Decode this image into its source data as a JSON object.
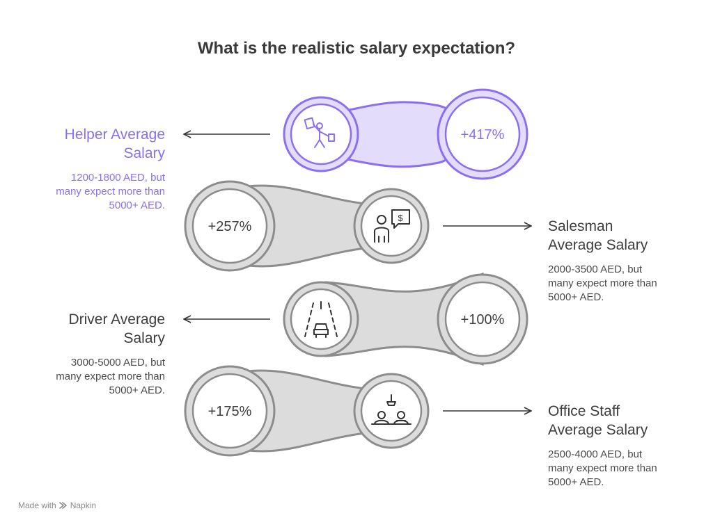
{
  "title": "What is the realistic salary expectation?",
  "rows": [
    {
      "id": "helper",
      "percent": "+417%",
      "icon": "delivery-person-icon",
      "heading": "Helper Average Salary",
      "heading_lines": [
        "Helper Average",
        "Salary"
      ],
      "description": "1200-1800 AED, but many expect more than 5000+ AED.",
      "desc_lines": [
        "1200-1800 AED, but",
        "many expect more than",
        "5000+ AED."
      ],
      "highlighted": true
    },
    {
      "id": "salesman",
      "percent": "+257%",
      "icon": "salesperson-icon",
      "heading": "Salesman Average Salary",
      "heading_lines": [
        "Salesman",
        "Average Salary"
      ],
      "description": "2000-3500 AED, but many expect more than 5000+ AED.",
      "desc_lines": [
        "2000-3500 AED, but",
        "many expect more than",
        "5000+ AED."
      ],
      "highlighted": false
    },
    {
      "id": "driver",
      "percent": "+100%",
      "icon": "car-road-icon",
      "heading": "Driver Average Salary",
      "heading_lines": [
        "Driver Average",
        "Salary"
      ],
      "description": "3000-5000 AED, but many expect more than 5000+ AED.",
      "desc_lines": [
        "3000-5000 AED, but",
        "many expect more than",
        "5000+ AED."
      ],
      "highlighted": false
    },
    {
      "id": "office",
      "percent": "+175%",
      "icon": "office-desk-icon",
      "heading": "Office Staff Average Salary",
      "heading_lines": [
        "Office Staff",
        "Average Salary"
      ],
      "description": "2500-4000 AED, but many expect more than 5000+ AED.",
      "desc_lines": [
        "2500-4000 AED, but",
        "many expect more than",
        "5000+ AED."
      ],
      "highlighted": false
    }
  ],
  "footer": {
    "made_with": "Made with",
    "brand": "Napkin"
  },
  "colors": {
    "purple": "#8b6ff0",
    "purple_fill": "#e3dcfb",
    "gray_stroke": "#8c8c8c",
    "gray_fill": "#dcdcdc",
    "text_dark": "#3d3d3d"
  }
}
